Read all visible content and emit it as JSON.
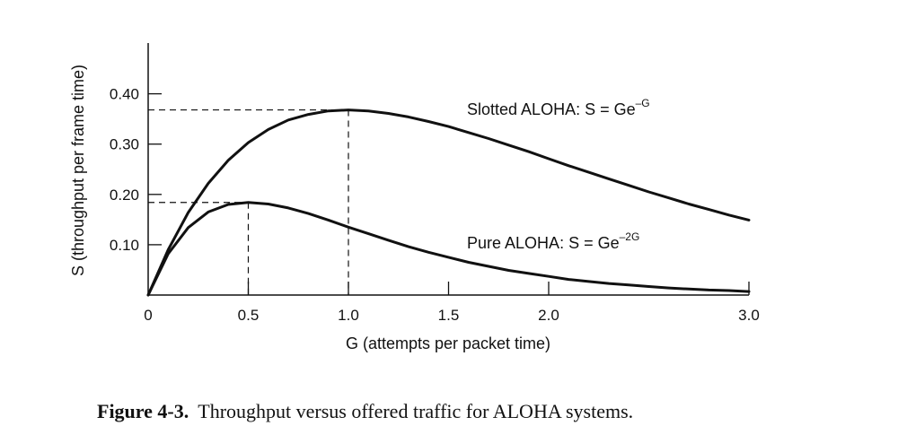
{
  "chart_data": {
    "type": "line",
    "xlabel": "G (attempts per packet time)",
    "ylabel": "S (throughput per frame time)",
    "xlim": [
      0,
      3.0
    ],
    "ylim": [
      0,
      0.45
    ],
    "x_ticks": [
      {
        "value": 0,
        "label": "0"
      },
      {
        "value": 0.5,
        "label": "0.5"
      },
      {
        "value": 1.0,
        "label": "1.0"
      },
      {
        "value": 1.5,
        "label": "1.5"
      },
      {
        "value": 2.0,
        "label": "2.0"
      },
      {
        "value": 3.0,
        "label": "3.0"
      }
    ],
    "y_ticks": [
      {
        "value": 0.1,
        "label": "0.10"
      },
      {
        "value": 0.2,
        "label": "0.20"
      },
      {
        "value": 0.3,
        "label": "0.30"
      },
      {
        "value": 0.4,
        "label": "0.40"
      }
    ],
    "series": [
      {
        "name": "Slotted ALOHA",
        "formula": "S = Ge",
        "exponent": "–G",
        "x": [
          0,
          0.1,
          0.2,
          0.3,
          0.4,
          0.5,
          0.6,
          0.7,
          0.8,
          0.9,
          1.0,
          1.1,
          1.2,
          1.3,
          1.4,
          1.5,
          1.6,
          1.7,
          1.8,
          1.9,
          2.0,
          2.1,
          2.2,
          2.3,
          2.4,
          2.5,
          2.6,
          2.7,
          2.8,
          2.9,
          3.0
        ],
        "y": [
          0,
          0.09,
          0.164,
          0.222,
          0.268,
          0.303,
          0.329,
          0.348,
          0.359,
          0.366,
          0.368,
          0.366,
          0.361,
          0.354,
          0.345,
          0.335,
          0.323,
          0.311,
          0.298,
          0.285,
          0.271,
          0.257,
          0.244,
          0.231,
          0.218,
          0.205,
          0.193,
          0.181,
          0.17,
          0.159,
          0.149
        ]
      },
      {
        "name": "Pure ALOHA",
        "formula": "S = Ge",
        "exponent": "–2G",
        "x": [
          0,
          0.1,
          0.2,
          0.3,
          0.4,
          0.5,
          0.6,
          0.7,
          0.8,
          0.9,
          1.0,
          1.1,
          1.2,
          1.3,
          1.4,
          1.5,
          1.6,
          1.7,
          1.8,
          1.9,
          2.0,
          2.1,
          2.2,
          2.3,
          2.4,
          2.5,
          2.6,
          2.7,
          2.8,
          2.9,
          3.0
        ],
        "y": [
          0,
          0.082,
          0.134,
          0.165,
          0.18,
          0.184,
          0.181,
          0.173,
          0.162,
          0.149,
          0.135,
          0.122,
          0.109,
          0.096,
          0.085,
          0.075,
          0.065,
          0.057,
          0.049,
          0.043,
          0.037,
          0.031,
          0.027,
          0.023,
          0.02,
          0.017,
          0.014,
          0.012,
          0.01,
          0.009,
          0.007
        ]
      }
    ],
    "reference_lines": [
      {
        "x": 1.0,
        "y": 0.368
      },
      {
        "x": 0.5,
        "y": 0.184
      }
    ],
    "grid": false,
    "legend": "inline labels"
  },
  "caption": {
    "number": "Figure 4-3.",
    "text": "Throughput versus offered traffic for ALOHA systems."
  },
  "colors": {
    "line": "#111111",
    "background": "#ffffff"
  }
}
